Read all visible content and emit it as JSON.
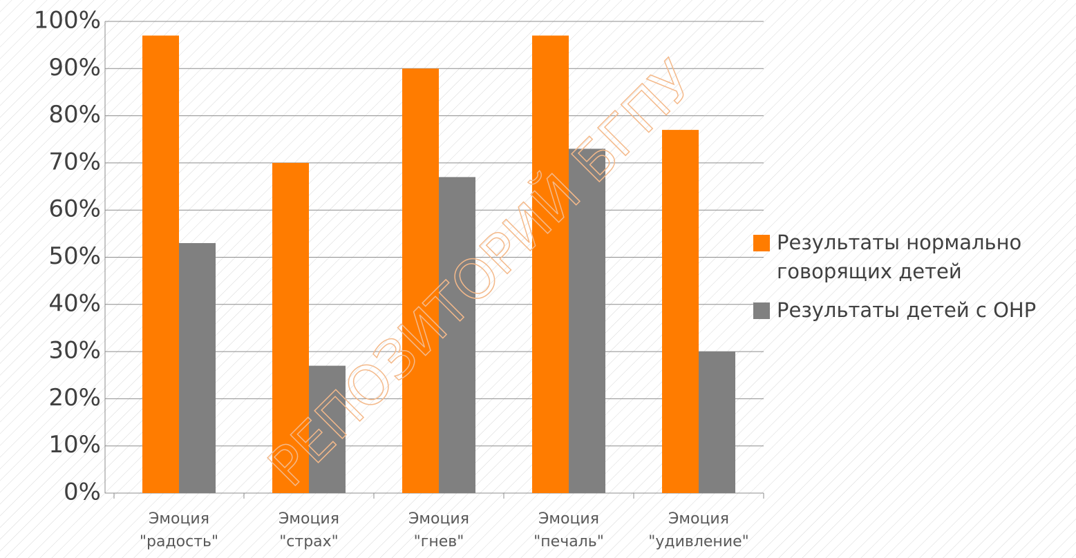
{
  "chart_data": {
    "type": "bar",
    "categories": [
      [
        "Эмоция",
        "\"радость\""
      ],
      [
        "Эмоция",
        "\"страх\""
      ],
      [
        "Эмоция",
        "\"гнев\""
      ],
      [
        "Эмоция",
        "\"печаль\""
      ],
      [
        "Эмоция",
        "\"удивление\""
      ]
    ],
    "series": [
      {
        "name": "Результаты нормально говорящих детей",
        "color": "#ff7c00",
        "values": [
          97,
          70,
          90,
          97,
          77
        ]
      },
      {
        "name": "Результаты детей с ОНР",
        "color": "#808080",
        "values": [
          53,
          27,
          67,
          73,
          30
        ]
      }
    ],
    "ylim": [
      0,
      100
    ],
    "yticks": [
      {
        "value": 0,
        "label": "0%"
      },
      {
        "value": 10,
        "label": "10%"
      },
      {
        "value": 20,
        "label": "20%"
      },
      {
        "value": 30,
        "label": "30%"
      },
      {
        "value": 40,
        "label": "40%"
      },
      {
        "value": 50,
        "label": "50%"
      },
      {
        "value": 60,
        "label": "60%"
      },
      {
        "value": 70,
        "label": "70%"
      },
      {
        "value": 80,
        "label": "80%"
      },
      {
        "value": 90,
        "label": "90%"
      },
      {
        "value": 100,
        "label": "100%"
      }
    ],
    "grid": true,
    "legend": "right",
    "watermark": "РЕПОЗИТОРИЙ БГПУ"
  }
}
